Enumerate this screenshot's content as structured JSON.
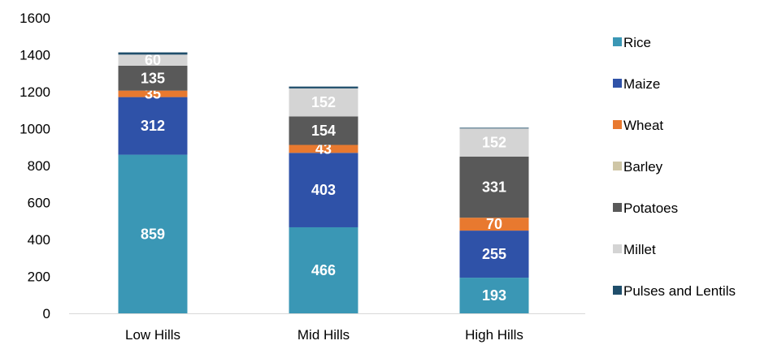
{
  "chart_data": {
    "type": "bar",
    "stacked": true,
    "categories": [
      "Low Hills",
      "Mid Hills",
      "High Hills"
    ],
    "series": [
      {
        "name": "Rice",
        "color": "#3a97b5",
        "values": [
          859,
          466,
          193
        ]
      },
      {
        "name": "Maize",
        "color": "#2f52a8",
        "values": [
          312,
          403,
          255
        ]
      },
      {
        "name": "Wheat",
        "color": "#e8792f",
        "values": [
          35,
          43,
          70
        ]
      },
      {
        "name": "Barley",
        "color": "#cfc6a6",
        "values": [
          0,
          0,
          0
        ]
      },
      {
        "name": "Potatoes",
        "color": "#595959",
        "values": [
          135,
          154,
          331
        ]
      },
      {
        "name": "Millet",
        "color": "#d4d4d4",
        "values": [
          60,
          152,
          152
        ]
      },
      {
        "name": "Pulses and Lentils",
        "color": "#1f4e6b",
        "values": [
          12,
          10,
          4
        ]
      }
    ],
    "data_labels": [
      [
        "859",
        "312",
        "35",
        null,
        "135",
        "60",
        null
      ],
      [
        "466",
        "403",
        "43",
        null,
        "154",
        "152",
        null
      ],
      [
        "193",
        "255",
        "70",
        null,
        "331",
        "152",
        null
      ]
    ],
    "yticks": [
      "0",
      "200",
      "400",
      "600",
      "800",
      "1000",
      "1200",
      "1400",
      "1600"
    ],
    "ylim": [
      0,
      1600
    ],
    "grid": false,
    "legend_position": "right"
  }
}
